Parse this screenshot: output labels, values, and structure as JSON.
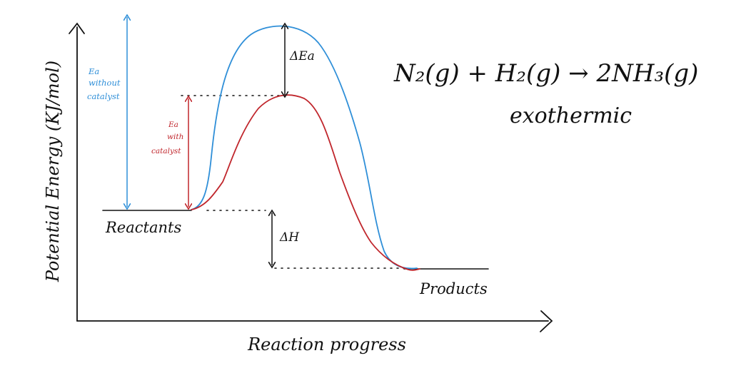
{
  "labels": {
    "y_axis": "Potential Energy (KJ/mol)",
    "x_axis": "Reaction progress",
    "reactants": "Reactants",
    "products": "Products",
    "delta_h": "ΔH",
    "delta_ea": "ΔEa",
    "ea_without_lines": [
      "Ea",
      "without",
      "catalyst"
    ],
    "ea_with_lines": [
      "Ea",
      "with",
      "catalyst"
    ],
    "equation": "N₂(g) + H₂(g) → 2NH₃(g)",
    "reaction_type": "exothermic"
  },
  "colors": {
    "ink": "#111111",
    "uncatalysed": "#2f8fd8",
    "catalysed": "#c0262c"
  }
}
